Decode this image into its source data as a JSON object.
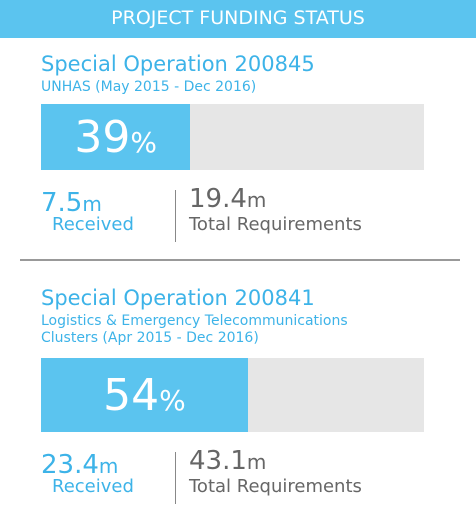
{
  "header": {
    "title": "PROJECT FUNDING STATUS"
  },
  "projects": [
    {
      "title": "Special Operation 200845",
      "subtitle_lines": [
        "UNHAS (May 2015 - Dec 2016)"
      ],
      "percent": 39,
      "percent_sign": "%",
      "received": {
        "amount": 7.5,
        "unit": "m",
        "label": "Received"
      },
      "total": {
        "amount": 19.4,
        "unit": "m",
        "label": "Total Requirements"
      }
    },
    {
      "title": "Special Operation 200841",
      "subtitle_lines": [
        "Logistics & Emergency Telecommunications",
        "Clusters (Apr 2015 - Dec 2016)"
      ],
      "percent": 54,
      "percent_sign": "%",
      "received": {
        "amount": 23.4,
        "unit": "m",
        "label": "Received"
      },
      "total": {
        "amount": 43.1,
        "unit": "m",
        "label": "Total Requirements"
      }
    }
  ]
}
